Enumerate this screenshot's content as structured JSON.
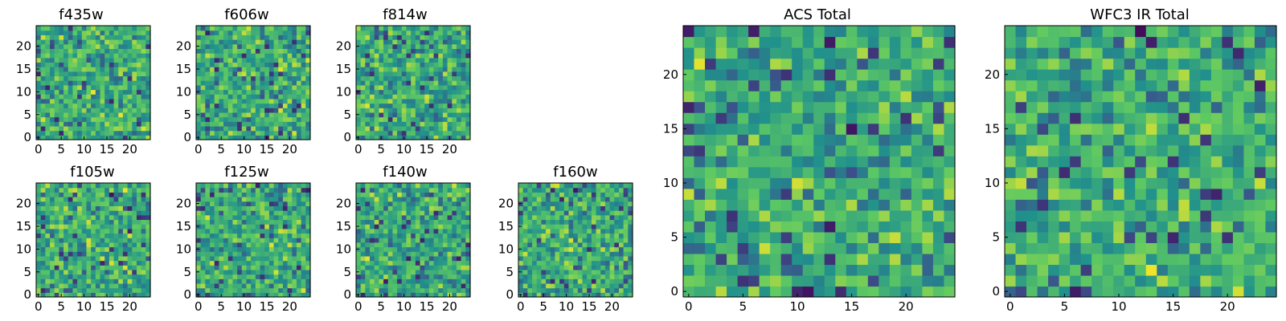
{
  "figure": {
    "panels": [
      {
        "id": "f435w",
        "title": "f435w",
        "xticks": [
          "0",
          "5",
          "10",
          "15",
          "20"
        ],
        "yticks": [
          "0",
          "5",
          "10",
          "15",
          "20"
        ]
      },
      {
        "id": "f606w",
        "title": "f606w",
        "xticks": [
          "0",
          "5",
          "10",
          "15",
          "20"
        ],
        "yticks": [
          "0",
          "5",
          "10",
          "15",
          "20"
        ]
      },
      {
        "id": "f814w",
        "title": "f814w",
        "xticks": [
          "0",
          "5",
          "10",
          "15",
          "20"
        ],
        "yticks": [
          "0",
          "5",
          "10",
          "15",
          "20"
        ]
      },
      {
        "id": "f105w",
        "title": "f105w",
        "xticks": [
          "0",
          "5",
          "10",
          "15",
          "20"
        ],
        "yticks": [
          "0",
          "5",
          "10",
          "15",
          "20"
        ]
      },
      {
        "id": "f125w",
        "title": "f125w",
        "xticks": [
          "0",
          "5",
          "10",
          "15",
          "20"
        ],
        "yticks": [
          "0",
          "5",
          "10",
          "15",
          "20"
        ]
      },
      {
        "id": "f140w",
        "title": "f140w",
        "xticks": [
          "0",
          "5",
          "10",
          "15",
          "20"
        ],
        "yticks": [
          "0",
          "5",
          "10",
          "15",
          "20"
        ]
      },
      {
        "id": "f160w",
        "title": "f160w",
        "xticks": [
          "0",
          "5",
          "10",
          "15",
          "20"
        ],
        "yticks": [
          "0",
          "5",
          "10",
          "15",
          "20"
        ]
      },
      {
        "id": "acs-total",
        "title": "ACS Total",
        "xticks": [
          "0",
          "5",
          "10",
          "15",
          "20"
        ],
        "yticks": [
          "0",
          "5",
          "10",
          "15",
          "20"
        ]
      },
      {
        "id": "wfc3-ir-total",
        "title": "WFC3 IR Total",
        "xticks": [
          "0",
          "5",
          "10",
          "15",
          "20"
        ],
        "yticks": [
          "0",
          "5",
          "10",
          "15",
          "20"
        ]
      }
    ]
  },
  "chart_data": {
    "type": "heatmap",
    "grid_size": 25,
    "colormap": "viridis",
    "colormap_stops": [
      "#440154",
      "#3b528b",
      "#21918c",
      "#5ec962",
      "#fde725"
    ],
    "axes": {
      "xlim": [
        -0.5,
        24.5
      ],
      "ylim": [
        -0.5,
        24.5
      ],
      "origin": "lower",
      "tick_values": [
        0,
        5,
        10,
        15,
        20
      ],
      "grid": false
    },
    "panels": [
      {
        "title": "f435w",
        "seed": 11
      },
      {
        "title": "f606w",
        "seed": 23
      },
      {
        "title": "f814w",
        "seed": 37
      },
      {
        "title": "f105w",
        "seed": 41
      },
      {
        "title": "f125w",
        "seed": 53
      },
      {
        "title": "f140w",
        "seed": 67
      },
      {
        "title": "f160w",
        "seed": 79
      },
      {
        "title": "ACS Total",
        "seed": 83
      },
      {
        "title": "WFC3 IR Total",
        "seed": 97
      }
    ]
  }
}
